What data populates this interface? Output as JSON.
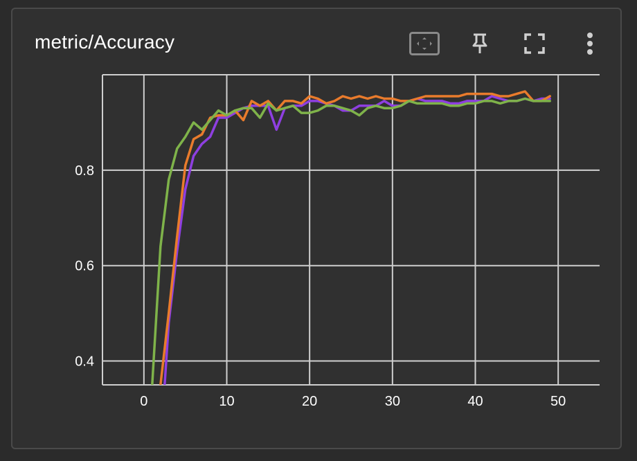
{
  "card": {
    "title": "metric/Accuracy"
  },
  "toolbar": {
    "icons": [
      "fit-domain-icon",
      "pin-icon",
      "fullscreen-icon",
      "more-vert-icon"
    ]
  },
  "colors": {
    "background": "#303030",
    "grid": "#cfcfcf",
    "text": "#ffffff",
    "purple": "#8e3fe0",
    "orange": "#e97b2c",
    "green": "#7fb34a"
  },
  "chart_data": {
    "type": "line",
    "title": "",
    "xlabel": "",
    "ylabel": "",
    "xlim": [
      -5,
      55
    ],
    "ylim": [
      0.35,
      1.0
    ],
    "x_ticks": [
      0,
      10,
      20,
      30,
      40,
      50
    ],
    "y_ticks": [
      0.4,
      0.6,
      0.8
    ],
    "x_tick_labels": [
      "0",
      "10",
      "20",
      "30",
      "40",
      "50"
    ],
    "y_tick_labels": [
      "0.4",
      "0.6",
      "0.8"
    ],
    "grid": true,
    "series": [
      {
        "color": "#8e3fe0",
        "x": [
          2.5,
          3,
          4,
          5,
          6,
          7,
          8,
          9,
          10,
          11,
          12,
          13,
          14,
          15,
          16,
          17,
          18,
          19,
          20,
          21,
          22,
          23,
          24,
          25,
          26,
          27,
          28,
          29,
          30,
          31,
          32,
          33,
          34,
          35,
          36,
          37,
          38,
          39,
          40,
          41,
          42,
          43,
          44,
          45,
          46,
          47,
          48,
          49
        ],
        "values": [
          0.35,
          0.48,
          0.63,
          0.76,
          0.83,
          0.855,
          0.87,
          0.91,
          0.91,
          0.92,
          0.93,
          0.935,
          0.935,
          0.935,
          0.885,
          0.93,
          0.935,
          0.935,
          0.945,
          0.945,
          0.94,
          0.935,
          0.925,
          0.925,
          0.935,
          0.935,
          0.935,
          0.945,
          0.935,
          0.935,
          0.945,
          0.95,
          0.945,
          0.945,
          0.945,
          0.94,
          0.94,
          0.945,
          0.945,
          0.945,
          0.955,
          0.95,
          0.945,
          0.945,
          0.95,
          0.945,
          0.95,
          0.95
        ]
      },
      {
        "color": "#e97b2c",
        "x": [
          2,
          3,
          4,
          5,
          6,
          7,
          8,
          9,
          10,
          11,
          12,
          13,
          14,
          15,
          16,
          17,
          18,
          19,
          20,
          21,
          22,
          23,
          24,
          25,
          26,
          27,
          28,
          29,
          30,
          31,
          32,
          33,
          34,
          35,
          36,
          37,
          38,
          39,
          40,
          41,
          42,
          43,
          44,
          45,
          46,
          47,
          48,
          49
        ],
        "values": [
          0.35,
          0.5,
          0.66,
          0.81,
          0.865,
          0.875,
          0.91,
          0.915,
          0.915,
          0.925,
          0.905,
          0.945,
          0.935,
          0.945,
          0.925,
          0.945,
          0.945,
          0.94,
          0.955,
          0.95,
          0.94,
          0.945,
          0.955,
          0.95,
          0.955,
          0.95,
          0.955,
          0.95,
          0.95,
          0.945,
          0.945,
          0.95,
          0.955,
          0.955,
          0.955,
          0.955,
          0.955,
          0.96,
          0.96,
          0.96,
          0.96,
          0.955,
          0.955,
          0.96,
          0.965,
          0.945,
          0.945,
          0.955
        ]
      },
      {
        "color": "#7fb34a",
        "x": [
          1,
          2,
          3,
          4,
          5,
          6,
          7,
          8,
          9,
          10,
          11,
          12,
          13,
          14,
          15,
          16,
          17,
          18,
          19,
          20,
          21,
          22,
          23,
          24,
          25,
          26,
          27,
          28,
          29,
          30,
          31,
          32,
          33,
          34,
          35,
          36,
          37,
          38,
          39,
          40,
          41,
          42,
          43,
          44,
          45,
          46,
          47,
          48,
          49
        ],
        "values": [
          0.35,
          0.64,
          0.78,
          0.845,
          0.87,
          0.9,
          0.885,
          0.905,
          0.925,
          0.915,
          0.925,
          0.93,
          0.93,
          0.91,
          0.94,
          0.925,
          0.93,
          0.935,
          0.92,
          0.92,
          0.925,
          0.935,
          0.935,
          0.93,
          0.925,
          0.915,
          0.93,
          0.935,
          0.93,
          0.93,
          0.935,
          0.945,
          0.94,
          0.94,
          0.94,
          0.94,
          0.935,
          0.935,
          0.94,
          0.94,
          0.945,
          0.945,
          0.94,
          0.945,
          0.945,
          0.95,
          0.945,
          0.945,
          0.945
        ]
      }
    ]
  }
}
